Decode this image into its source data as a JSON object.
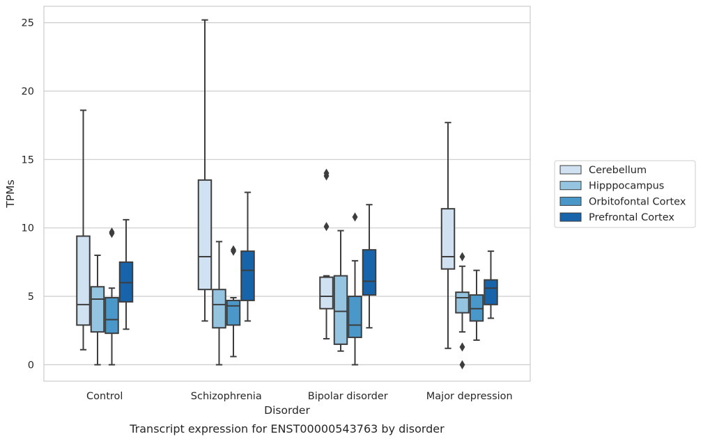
{
  "chart_data": {
    "type": "box",
    "caption": "Transcript expression for ENST00000543763 by disorder",
    "xlabel": "Disorder",
    "ylabel": "TPMs",
    "ylim": [
      -1.2,
      26.2
    ],
    "yticks": [
      0,
      5,
      10,
      15,
      20,
      25
    ],
    "grid": "horizontal",
    "legend_position": "right",
    "categories": [
      "Control",
      "Schizophrenia",
      "Bipolar disorder",
      "Major depression"
    ],
    "series": [
      {
        "name": "Cerebellum",
        "color": "#d0e1f2",
        "boxes": [
          {
            "whisker_low": 1.1,
            "q1": 2.9,
            "median": 4.4,
            "q3": 9.4,
            "whisker_high": 18.6,
            "outliers": []
          },
          {
            "whisker_low": 3.2,
            "q1": 5.5,
            "median": 7.9,
            "q3": 13.5,
            "whisker_high": 25.2,
            "outliers": []
          },
          {
            "whisker_low": 1.9,
            "q1": 4.1,
            "median": 5.0,
            "q3": 6.4,
            "whisker_high": 6.5,
            "outliers": [
              10.1,
              13.8,
              14.0
            ]
          },
          {
            "whisker_low": 1.2,
            "q1": 7.0,
            "median": 7.9,
            "q3": 11.4,
            "whisker_high": 17.7,
            "outliers": []
          }
        ]
      },
      {
        "name": "Hipppocampus",
        "color": "#94c4df",
        "boxes": [
          {
            "whisker_low": 0.0,
            "q1": 2.4,
            "median": 4.8,
            "q3": 5.7,
            "whisker_high": 8.0,
            "outliers": []
          },
          {
            "whisker_low": 0.0,
            "q1": 2.7,
            "median": 4.4,
            "q3": 5.5,
            "whisker_high": 9.0,
            "outliers": []
          },
          {
            "whisker_low": 1.0,
            "q1": 1.5,
            "median": 3.9,
            "q3": 6.5,
            "whisker_high": 9.8,
            "outliers": []
          },
          {
            "whisker_low": 2.4,
            "q1": 3.8,
            "median": 4.9,
            "q3": 5.3,
            "whisker_high": 7.2,
            "outliers": [
              7.9,
              1.3,
              0.0
            ]
          }
        ]
      },
      {
        "name": "Orbitofontal Cortex",
        "color": "#4a98c9",
        "boxes": [
          {
            "whisker_low": 0.0,
            "q1": 2.3,
            "median": 3.3,
            "q3": 4.9,
            "whisker_high": 5.6,
            "outliers": [
              9.6,
              9.7
            ]
          },
          {
            "whisker_low": 0.6,
            "q1": 2.9,
            "median": 4.3,
            "q3": 4.7,
            "whisker_high": 4.9,
            "outliers": [
              8.3,
              8.4
            ]
          },
          {
            "whisker_low": 0.0,
            "q1": 2.0,
            "median": 2.9,
            "q3": 5.0,
            "whisker_high": 7.6,
            "outliers": [
              10.8
            ]
          },
          {
            "whisker_low": 1.8,
            "q1": 3.2,
            "median": 4.1,
            "q3": 5.1,
            "whisker_high": 6.9,
            "outliers": []
          }
        ]
      },
      {
        "name": "Prefrontal Cortex",
        "color": "#1764ab",
        "boxes": [
          {
            "whisker_low": 2.6,
            "q1": 4.6,
            "median": 6.0,
            "q3": 7.5,
            "whisker_high": 10.6,
            "outliers": []
          },
          {
            "whisker_low": 3.2,
            "q1": 4.7,
            "median": 6.9,
            "q3": 8.3,
            "whisker_high": 12.6,
            "outliers": []
          },
          {
            "whisker_low": 2.7,
            "q1": 5.1,
            "median": 6.1,
            "q3": 8.4,
            "whisker_high": 11.7,
            "outliers": []
          },
          {
            "whisker_low": 3.4,
            "q1": 4.4,
            "median": 5.6,
            "q3": 6.2,
            "whisker_high": 8.3,
            "outliers": []
          }
        ]
      }
    ]
  }
}
